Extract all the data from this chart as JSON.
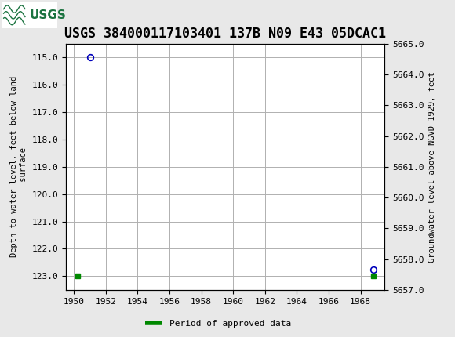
{
  "title": "USGS 384000117103401 137B N09 E43 05DCAC1",
  "ylabel_left": "Depth to water level, feet below land\n surface",
  "ylabel_right": "Groundwater level above NGVD 1929, feet",
  "xlim": [
    1949.5,
    1969.5
  ],
  "ylim_left": [
    123.5,
    114.5
  ],
  "ylim_right_bottom": 5657.0,
  "ylim_right_top": 5665.0,
  "xticks": [
    1950,
    1952,
    1954,
    1956,
    1958,
    1960,
    1962,
    1964,
    1966,
    1968
  ],
  "yticks_left": [
    115.0,
    116.0,
    117.0,
    118.0,
    119.0,
    120.0,
    121.0,
    122.0,
    123.0
  ],
  "yticks_right": [
    5665.0,
    5664.0,
    5663.0,
    5662.0,
    5661.0,
    5660.0,
    5659.0,
    5658.0,
    5657.0
  ],
  "data_points_blue": [
    [
      1951.0,
      115.0
    ],
    [
      1968.8,
      122.75
    ]
  ],
  "data_points_green": [
    [
      1950.25,
      123.0
    ],
    [
      1968.8,
      123.0
    ]
  ],
  "header_color": "#1b7340",
  "plot_bg_color": "#ffffff",
  "outer_bg_color": "#e8e8e8",
  "grid_color": "#b0b0b0",
  "blue_marker_color": "#0000bb",
  "green_marker_color": "#008800",
  "title_fontsize": 12,
  "axis_label_fontsize": 7.5,
  "tick_fontsize": 8,
  "legend_label": "Period of approved data",
  "font_family": "monospace"
}
